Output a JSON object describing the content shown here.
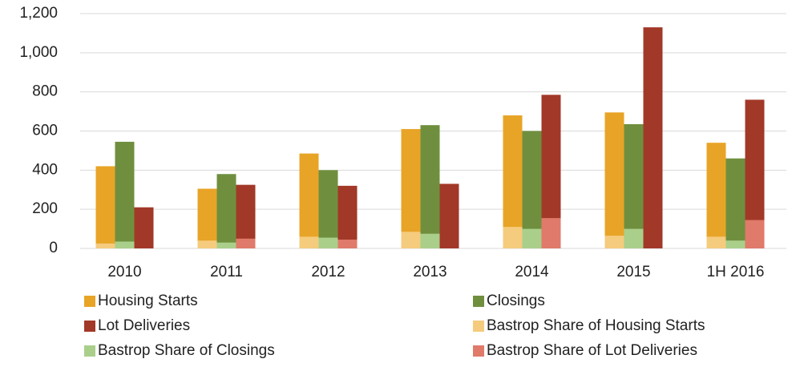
{
  "chart_data": {
    "type": "bar",
    "categories": [
      "2010",
      "2011",
      "2012",
      "2013",
      "2014",
      "2015",
      "1H 2016"
    ],
    "series": [
      {
        "name": "Housing Starts",
        "color": "#e8a427",
        "values": [
          420,
          305,
          485,
          610,
          680,
          695,
          540
        ]
      },
      {
        "name": "Closings",
        "color": "#6f8f3e",
        "values": [
          545,
          380,
          400,
          630,
          600,
          635,
          460
        ]
      },
      {
        "name": "Lot Deliveries",
        "color": "#a23828",
        "values": [
          210,
          325,
          320,
          330,
          785,
          1130,
          760
        ]
      },
      {
        "name": "Bastrop Share of Housing Starts",
        "color": "#f5cb7d",
        "values": [
          25,
          40,
          60,
          85,
          110,
          65,
          60
        ]
      },
      {
        "name": "Bastrop Share of Closings",
        "color": "#a9cf8b",
        "values": [
          35,
          30,
          55,
          75,
          100,
          100,
          40
        ]
      },
      {
        "name": "Bastrop Share of Lot Deliveries",
        "color": "#e07a6a",
        "values": [
          0,
          50,
          45,
          0,
          155,
          0,
          145
        ]
      }
    ],
    "ylim": [
      0,
      1200
    ],
    "yticks": [
      0,
      200,
      400,
      600,
      800,
      {
        "value": 1000,
        "label": "1,000"
      },
      {
        "value": 1200,
        "label": "1,200"
      }
    ],
    "grid": true,
    "legend": "bottom"
  }
}
